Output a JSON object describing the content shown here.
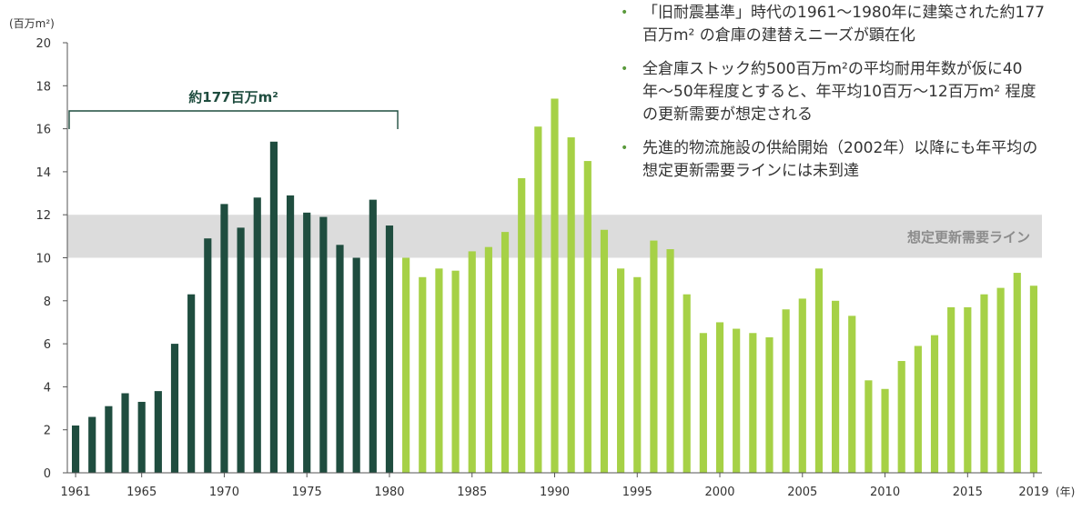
{
  "chart_data": {
    "type": "bar",
    "y_unit_label": "(百万m²)",
    "x_unit_label": "(年)",
    "ylim": [
      0,
      20
    ],
    "y_ticks": [
      0,
      2,
      4,
      6,
      8,
      10,
      12,
      14,
      16,
      18,
      20
    ],
    "x": [
      1961,
      1962,
      1963,
      1964,
      1965,
      1966,
      1967,
      1968,
      1969,
      1970,
      1971,
      1972,
      1973,
      1974,
      1975,
      1976,
      1977,
      1978,
      1979,
      1980,
      1981,
      1982,
      1983,
      1984,
      1985,
      1986,
      1987,
      1988,
      1989,
      1990,
      1991,
      1992,
      1993,
      1994,
      1995,
      1996,
      1997,
      1998,
      1999,
      2000,
      2001,
      2002,
      2003,
      2004,
      2005,
      2006,
      2007,
      2008,
      2009,
      2010,
      2011,
      2012,
      2013,
      2014,
      2015,
      2016,
      2017,
      2018,
      2019
    ],
    "values": [
      2.2,
      2.6,
      3.1,
      3.7,
      3.3,
      3.8,
      6.0,
      8.3,
      10.9,
      12.5,
      11.4,
      12.8,
      15.4,
      12.9,
      12.1,
      11.9,
      10.6,
      10.0,
      12.7,
      11.5,
      10.0,
      9.1,
      9.5,
      9.4,
      10.3,
      10.5,
      11.2,
      13.7,
      16.1,
      17.4,
      15.6,
      14.5,
      11.3,
      9.5,
      9.1,
      10.8,
      10.4,
      8.3,
      6.5,
      7.0,
      6.7,
      6.5,
      6.3,
      7.6,
      8.1,
      9.5,
      8.0,
      7.3,
      4.3,
      3.9,
      5.2,
      5.9,
      6.4,
      7.7,
      7.7,
      8.3,
      8.6,
      9.3,
      8.7
    ],
    "x_tick_labels": [
      "1961",
      "1965",
      "1970",
      "1975",
      "1980",
      "1985",
      "1990",
      "1995",
      "2000",
      "2005",
      "2010",
      "2015",
      "2019"
    ],
    "colors": {
      "old_standard": "#1f4d3f",
      "new": "#a6d146",
      "band": "#dcdcdc",
      "axis": "#555555"
    },
    "old_standard_range": [
      1961,
      1980
    ],
    "bracket_label": "約177百万m²",
    "band": {
      "range": [
        10,
        12
      ],
      "label": "想定更新需要ライン"
    }
  },
  "bullets": [
    "「旧耐震基準」時代の1961〜1980年に建築された約177百万m² の倉庫の建替えニーズが顕在化",
    "全倉庫ストック約500百万m²の平均耐用年数が仮に40年〜50年程度とすると、年平均10百万〜12百万m² 程度の更新需要が想定される",
    "先進的物流施設の供給開始（2002年）以降にも年平均の想定更新需要ラインには未到達"
  ],
  "bullet_marker": "•"
}
